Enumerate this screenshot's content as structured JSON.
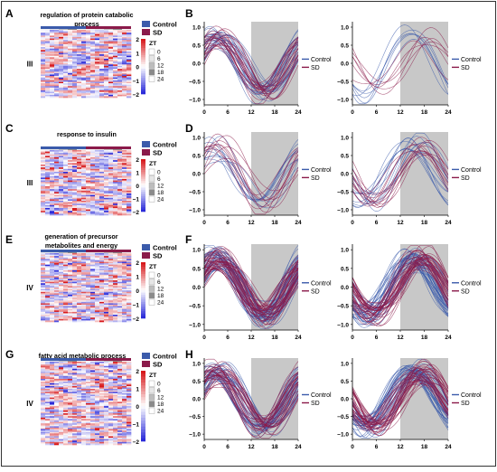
{
  "frame_color": "#000000",
  "colors": {
    "control": "#3b5bab",
    "sd": "#8b1a4a",
    "heat_low": "#2b2bd9",
    "heat_mid": "#ffffff",
    "heat_high": "#d7191c",
    "night_shade": "#c8c8c8"
  },
  "legend": {
    "group_title": "",
    "control": "Control",
    "sd": "SD",
    "zt_title": "ZT",
    "zt_values": [
      "0",
      "6",
      "12",
      "18",
      "24"
    ],
    "zt_grays": [
      "#ffffff",
      "#e6e6e6",
      "#bdbdbd",
      "#8a8a8a",
      "#ffffff"
    ],
    "scale_ticks": [
      "2",
      "1",
      "0",
      "−1",
      "−2"
    ]
  },
  "heatmaps": [
    {
      "letter": "A",
      "title_lines": [
        "regulation of protein catabolic",
        "process"
      ],
      "cluster": "III",
      "seed": 11
    },
    {
      "letter": "C",
      "title_lines": [
        "response to insulin"
      ],
      "cluster": "III",
      "seed": 23
    },
    {
      "letter": "E",
      "title_lines": [
        "generation of precursor",
        "metabolites and energy"
      ],
      "cluster": "IV",
      "seed": 37
    },
    {
      "letter": "G",
      "title_lines": [
        "fatty acid metabolic process"
      ],
      "cluster": "IV",
      "seed": 51
    }
  ],
  "chart_data": [
    {
      "letter": "B",
      "panel": "left",
      "type": "line",
      "x_ticks": [
        0,
        6,
        12,
        18,
        24
      ],
      "y_ticks": [
        "1.0",
        "0.5",
        "0.0",
        "−0.5",
        "−1.0"
      ],
      "xlim": [
        0,
        24
      ],
      "ylim": [
        -1.15,
        1.15
      ],
      "shade_from": 12,
      "shade_to": 24,
      "series": [
        {
          "name": "Control",
          "curves": 22,
          "peak_hours": [
            1,
            6
          ],
          "trough_hours": [
            13,
            17
          ]
        },
        {
          "name": "SD",
          "curves": 22,
          "peak_hours": [
            1,
            6
          ],
          "trough_hours": [
            13,
            17
          ]
        }
      ]
    },
    {
      "letter": "B",
      "panel": "right",
      "type": "line",
      "x_ticks": [
        0,
        6,
        12,
        18,
        24
      ],
      "y_ticks": [
        "1.0",
        "0.5",
        "0.0",
        "−0.5",
        "−1.0"
      ],
      "xlim": [
        0,
        24
      ],
      "ylim": [
        -1.15,
        1.15
      ],
      "shade_from": 12,
      "shade_to": 24,
      "series": [
        {
          "name": "Control",
          "curves": 6,
          "peak_hours": [
            13,
            19
          ],
          "trough_hours": [
            1,
            6
          ]
        },
        {
          "name": "SD",
          "curves": 6,
          "peak_hours": [
            15,
            20
          ],
          "trough_hours": [
            3,
            7
          ]
        }
      ]
    },
    {
      "letter": "D",
      "panel": "left",
      "type": "line",
      "x_ticks": [
        0,
        6,
        12,
        18,
        24
      ],
      "y_ticks": [
        "1.0",
        "0.5",
        "0.0",
        "−0.5",
        "−1.0"
      ],
      "xlim": [
        0,
        24
      ],
      "ylim": [
        -1.15,
        1.15
      ],
      "shade_from": 12,
      "shade_to": 24,
      "series": [
        {
          "name": "Control",
          "curves": 10,
          "peak_hours": [
            1,
            6
          ],
          "trough_hours": [
            13,
            17
          ]
        },
        {
          "name": "SD",
          "curves": 10,
          "peak_hours": [
            1,
            6
          ],
          "trough_hours": [
            13,
            17
          ]
        }
      ]
    },
    {
      "letter": "D",
      "panel": "right",
      "type": "line",
      "x_ticks": [
        0,
        6,
        12,
        18,
        24
      ],
      "y_ticks": [
        "1.0",
        "0.5",
        "0.0",
        "−0.5",
        "−1.0"
      ],
      "xlim": [
        0,
        24
      ],
      "ylim": [
        -1.15,
        1.15
      ],
      "shade_from": 12,
      "shade_to": 24,
      "series": [
        {
          "name": "Control",
          "curves": 12,
          "peak_hours": [
            13,
            19
          ],
          "trough_hours": [
            1,
            6
          ]
        },
        {
          "name": "SD",
          "curves": 12,
          "peak_hours": [
            15,
            20
          ],
          "trough_hours": [
            3,
            7
          ]
        }
      ]
    },
    {
      "letter": "F",
      "panel": "left",
      "type": "line",
      "x_ticks": [
        0,
        6,
        12,
        18,
        24
      ],
      "y_ticks": [
        "1.0",
        "0.5",
        "0.0",
        "−0.5",
        "−1.0"
      ],
      "xlim": [
        0,
        24
      ],
      "ylim": [
        -1.15,
        1.15
      ],
      "shade_from": 12,
      "shade_to": 24,
      "series": [
        {
          "name": "Control",
          "curves": 40,
          "peak_hours": [
            1,
            6
          ],
          "trough_hours": [
            13,
            17
          ]
        },
        {
          "name": "SD",
          "curves": 40,
          "peak_hours": [
            1,
            6
          ],
          "trough_hours": [
            13,
            17
          ]
        }
      ]
    },
    {
      "letter": "F",
      "panel": "right",
      "type": "line",
      "x_ticks": [
        0,
        6,
        12,
        18,
        24
      ],
      "y_ticks": [
        "1.0",
        "0.5",
        "0.0",
        "−0.5",
        "−1.0"
      ],
      "xlim": [
        0,
        24
      ],
      "ylim": [
        -1.15,
        1.15
      ],
      "shade_from": 12,
      "shade_to": 24,
      "series": [
        {
          "name": "Control",
          "curves": 35,
          "peak_hours": [
            13,
            19
          ],
          "trough_hours": [
            1,
            6
          ]
        },
        {
          "name": "SD",
          "curves": 35,
          "peak_hours": [
            15,
            20
          ],
          "trough_hours": [
            3,
            7
          ]
        }
      ]
    },
    {
      "letter": "H",
      "panel": "left",
      "type": "line",
      "x_ticks": [
        0,
        6,
        12,
        18,
        24
      ],
      "y_ticks": [
        "1.0",
        "0.5",
        "0.0",
        "−0.5",
        "−1.0"
      ],
      "xlim": [
        0,
        24
      ],
      "ylim": [
        -1.15,
        1.15
      ],
      "shade_from": 12,
      "shade_to": 24,
      "series": [
        {
          "name": "Control",
          "curves": 30,
          "peak_hours": [
            1,
            6
          ],
          "trough_hours": [
            13,
            17
          ]
        },
        {
          "name": "SD",
          "curves": 30,
          "peak_hours": [
            1,
            6
          ],
          "trough_hours": [
            13,
            17
          ]
        }
      ]
    },
    {
      "letter": "H",
      "panel": "right",
      "type": "line",
      "x_ticks": [
        0,
        6,
        12,
        18,
        24
      ],
      "y_ticks": [
        "1.0",
        "0.5",
        "0.0",
        "−0.5",
        "−1.0"
      ],
      "xlim": [
        0,
        24
      ],
      "ylim": [
        -1.15,
        1.15
      ],
      "shade_from": 12,
      "shade_to": 24,
      "series": [
        {
          "name": "Control",
          "curves": 35,
          "peak_hours": [
            13,
            19
          ],
          "trough_hours": [
            1,
            6
          ]
        },
        {
          "name": "SD",
          "curves": 35,
          "peak_hours": [
            15,
            20
          ],
          "trough_hours": [
            3,
            7
          ]
        }
      ]
    }
  ]
}
